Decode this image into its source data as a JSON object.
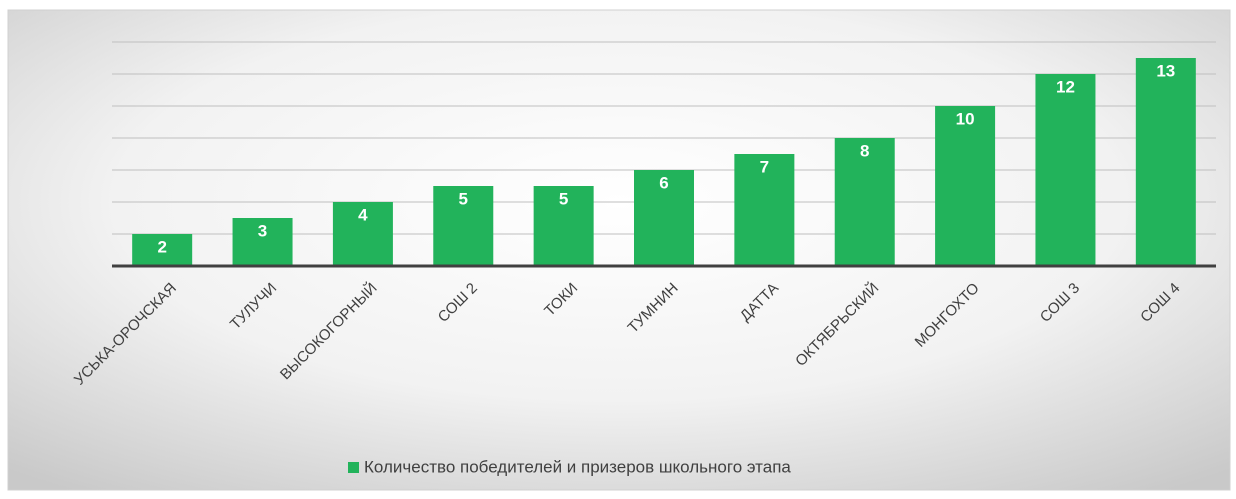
{
  "chart_data": {
    "type": "bar",
    "categories": [
      "УСЬКА-ОРОЧСКАЯ",
      "ТУЛУЧИ",
      "ВЫСОКОГОРНЫЙ",
      "СОШ 2",
      "ТОКИ",
      "ТУМНИН",
      "ДАТТА",
      "ОКТЯБРЬСКИЙ",
      "МОНГОХТО",
      "СОШ 3",
      "СОШ 4"
    ],
    "series": [
      {
        "name": "Количество победителей и призеров школьного этапа",
        "color": "#22b35b",
        "values": [
          2,
          3,
          4,
          5,
          5,
          6,
          7,
          8,
          10,
          12,
          13
        ]
      }
    ],
    "ylim": [
      0,
      14
    ],
    "yticks": [
      0,
      2,
      4,
      6,
      8,
      10,
      12,
      14
    ],
    "grid": true,
    "legend": "bottom"
  }
}
